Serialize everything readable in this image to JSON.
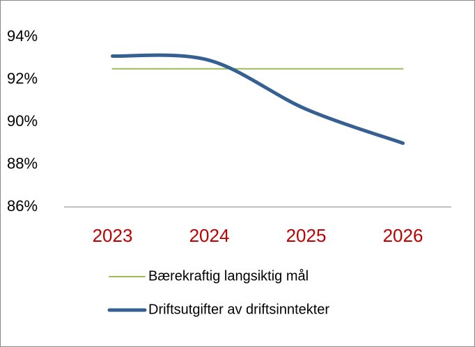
{
  "chart_data": {
    "type": "line",
    "categories": [
      "2023",
      "2024",
      "2025",
      "2026"
    ],
    "series": [
      {
        "name": "Bærekraftig langsiktig mål",
        "color": "#9bbb59",
        "width": 2,
        "values": [
          92.5,
          92.5,
          92.5,
          92.5
        ]
      },
      {
        "name": "Driftsutgifter av driftsinntekter",
        "color": "#376092",
        "width": 5,
        "values": [
          93.1,
          92.9,
          90.6,
          89.0
        ]
      }
    ],
    "ylim": [
      86,
      94
    ],
    "yticks": [
      {
        "value": 86,
        "label": "86%"
      },
      {
        "value": 88,
        "label": "88%"
      },
      {
        "value": 90,
        "label": "90%"
      },
      {
        "value": 92,
        "label": "92%"
      },
      {
        "value": 94,
        "label": "94%"
      }
    ],
    "category_color": "#c00000",
    "smooth": true,
    "legend": "bottom"
  }
}
